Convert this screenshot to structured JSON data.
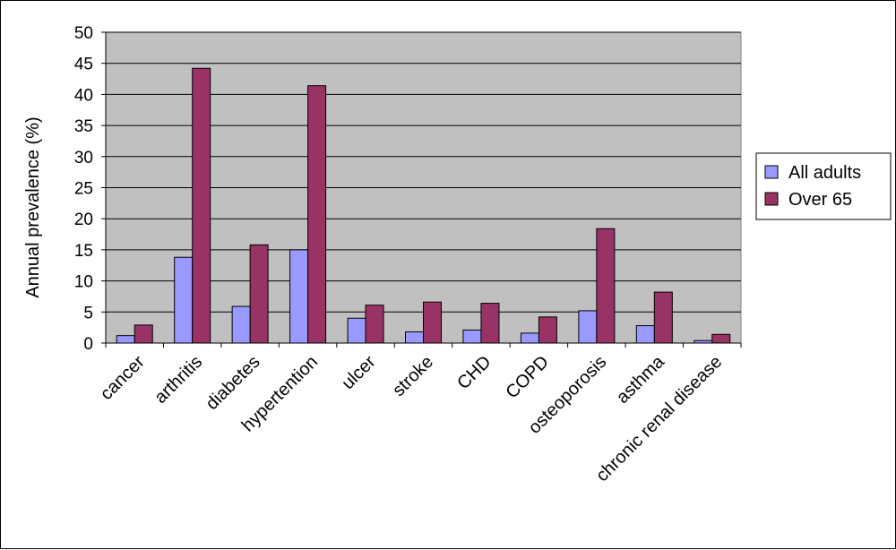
{
  "chart_data": {
    "type": "bar",
    "title": "",
    "xlabel": "",
    "ylabel": "Annual prevalence (%)",
    "ylim": [
      0,
      50
    ],
    "ytick_step": 5,
    "grid": true,
    "legend_position": "right",
    "categories": [
      "cancer",
      "arthritis",
      "diabetes",
      "hypertention",
      "ulcer",
      "stroke",
      "CHD",
      "COPD",
      "osteoporosis",
      "asthma",
      "chronic renal disease"
    ],
    "series": [
      {
        "name": "All adults",
        "color": "#9999ff",
        "values": [
          1.2,
          13.8,
          5.9,
          15.0,
          4.0,
          1.8,
          2.1,
          1.6,
          5.2,
          2.8,
          0.4
        ]
      },
      {
        "name": "Over 65",
        "color": "#993366",
        "values": [
          2.9,
          44.2,
          15.8,
          41.4,
          6.1,
          6.6,
          6.4,
          4.2,
          18.4,
          8.2,
          1.4
        ]
      }
    ],
    "plot_background": "#c0c0c0"
  }
}
